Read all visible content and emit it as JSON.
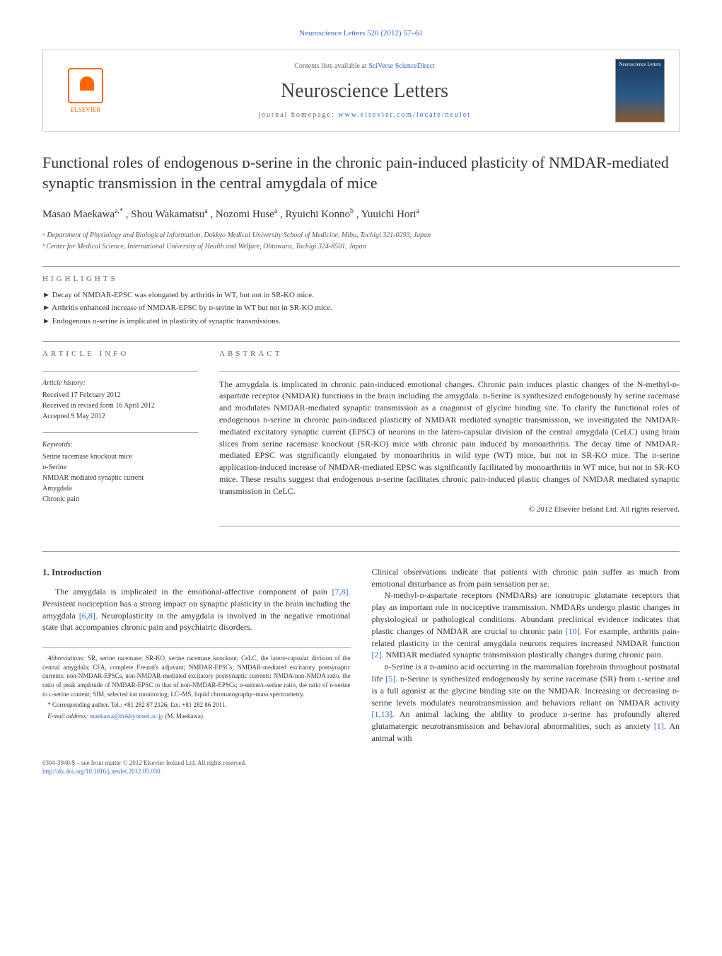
{
  "journal_ref": "Neuroscience Letters 520 (2012) 57–61",
  "header": {
    "publisher_label": "ELSEVIER",
    "contents_prefix": "Contents lists available at ",
    "contents_link": "SciVerse ScienceDirect",
    "journal_name": "Neuroscience Letters",
    "homepage_prefix": "journal homepage: ",
    "homepage_link": "www.elsevier.com/locate/neulet",
    "cover_text": "Neuroscience Letters"
  },
  "article": {
    "title": "Functional roles of endogenous ᴅ-serine in the chronic pain-induced plasticity of NMDAR-mediated synaptic transmission in the central amygdala of mice",
    "authors_html": "Masao Maekawa",
    "author_a_sup": "a,*",
    "author_2": ", Shou Wakamatsu",
    "author_2_sup": "a",
    "author_3": ", Nozomi Huse",
    "author_3_sup": "a",
    "author_4": ", Ryuichi Konno",
    "author_4_sup": "b",
    "author_5": ", Yuuichi Hori",
    "author_5_sup": "a",
    "affil_a": "ᵃ Department of Physiology and Biological Information, Dokkyo Medical University School of Medicine, Mibu, Tochigi 321-0293, Japan",
    "affil_b": "ᵇ Center for Medical Science, International University of Health and Welfare, Ohtawara, Tochigi 324-8501, Japan"
  },
  "highlights": {
    "label": "HIGHLIGHTS",
    "items": [
      "Decay of NMDAR-EPSC was elongated by arthritis in WT, but not in SR-KO mice.",
      "Arthritis enhanced increase of NMDAR-EPSC by ᴅ-serine in WT but not in SR-KO mice.",
      "Endogenous ᴅ-serine is implicated in plasticity of synaptic transmissions."
    ]
  },
  "info": {
    "label": "ARTICLE INFO",
    "history_title": "Article history:",
    "received": "Received 17 February 2012",
    "revised": "Received in revised form 16 April 2012",
    "accepted": "Accepted 9 May 2012",
    "keywords_title": "Keywords:",
    "keywords": [
      "Serine racemase knockout mice",
      "ᴅ-Serine",
      "NMDAR mediated synaptic current",
      "Amygdala",
      "Chronic pain"
    ]
  },
  "abstract": {
    "label": "ABSTRACT",
    "text": "The amygdala is implicated in chronic pain-induced emotional changes. Chronic pain induces plastic changes of the N-methyl-ᴅ-aspartate receptor (NMDAR) functions in the brain including the amygdala. ᴅ-Serine is synthesized endogenously by serine racemase and modulates NMDAR-mediated synaptic transmission as a coagonist of glycine binding site. To clarify the functional roles of endogenous ᴅ-serine in chronic pain-induced plasticity of NMDAR mediated synaptic transmission, we investigated the NMDAR-mediated excitatory synaptic current (EPSC) of neurons in the latero-capsular division of the central amygdala (CeLC) using brain slices from serine racemase knockout (SR-KO) mice with chronic pain induced by monoarthritis. The decay time of NMDAR-mediated EPSC was significantly elongated by monoarthritis in wild type (WT) mice, but not in SR-KO mice. The ᴅ-serine application-induced increase of NMDAR-mediated EPSC was significantly facilitated by monoarthritis in WT mice, but not in SR-KO mice. These results suggest that endogenous ᴅ-serine facilitates chronic pain-induced plastic changes of NMDAR mediated synaptic transmission in CeLC.",
    "copyright": "© 2012 Elsevier Ireland Ltd. All rights reserved."
  },
  "intro": {
    "heading": "1. Introduction",
    "p1": "The amygdala is implicated in the emotional-affective component of pain [7,8]. Persistent nociception has a strong impact on synaptic plasticity in the brain including the amygdala [6,8]. Neuroplasticity in the amygdala is involved in the negative emotional state that accompanies chronic pain and psychiatric disorders.",
    "p2": "Clinical observations indicate that patients with chronic pain suffer as much from emotional disturbance as from pain sensation per se.",
    "p3": "N-methyl-ᴅ-aspartate receptors (NMDARs) are ionotropic glutamate receptors that play an important role in nociceptive transmission. NMDARs undergo plastic changes in physiological or pathological conditions. Abundant preclinical evidence indicates that plastic changes of NMDAR are crucial to chronic pain [10]. For example, arthritis pain-related plasticity in the central amygdala neurons requires increased NMDAR function [2]. NMDAR mediated synaptic transmission plastically changes during chronic pain.",
    "p4": "ᴅ-Serine is a ᴅ-amino acid occurring in the mammalian forebrain throughout postnatal life [5]. ᴅ-Serine is synthesized endogenously by serine racemase (SR) from ʟ-serine and is a full agonist at the glycine binding site on the NMDAR. Increasing or decreasing ᴅ-serine levels modulates neurotransmission and behaviors reliant on NMDAR activity [1,13]. An animal lacking the ability to produce ᴅ-serine has profoundly altered glutamatergic neurotransmission and behavioral abnormalities, such as anxiety [1]. An animal with"
  },
  "footnotes": {
    "abbrev_label": "Abbreviations:",
    "abbrev_text": " SR, serine racemase; SR-KO, serine racemase knockout; CeLC, the latero-capsular division of the central amygdala; CFA, complete Freund's adjuvant; NMDAR-EPSCs, NMDAR-mediated excitatory postsynaptic currents; non-NMDAR-EPSCs, non-NMDAR-mediated excitatory postsynaptic currents; NMDA/non-NMDA ratio, the ratio of peak amplitude of NMDAR-EPSC to that of non-NMDAR-EPSCs; ᴅ-serine/ʟ-serine ratio, the ratio of ᴅ-serine to ʟ-serine content; SIM, selected ion monitoring; LC–MS, liquid chromatography–mass spectrometry.",
    "corr_label": "* Corresponding author. Tel.: +81 282 87 2126; fax: +81 282 86 2011.",
    "email_label": "E-mail address: ",
    "email": "maekawa@dokkyomed.ac.jp",
    "email_suffix": " (M. Maekawa)."
  },
  "bottom": {
    "issn": "0304-3940/$ – see front matter © 2012 Elsevier Ireland Ltd. All rights reserved.",
    "doi": "http://dx.doi.org/10.1016/j.neulet.2012.05.030"
  },
  "colors": {
    "link": "#3366cc",
    "publisher": "#ff6600"
  }
}
